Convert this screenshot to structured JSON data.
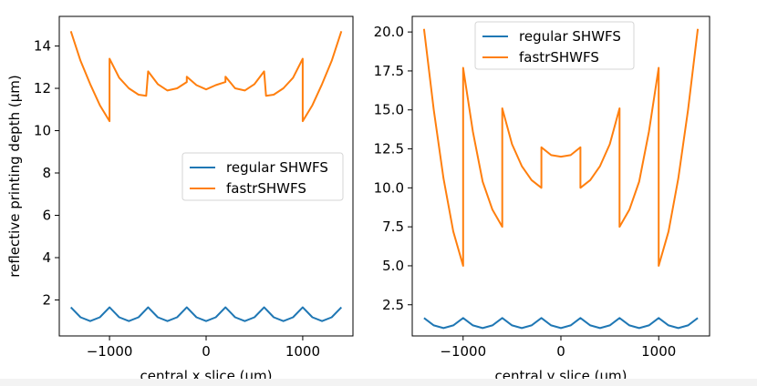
{
  "chart_data": [
    {
      "type": "line",
      "title": "",
      "xlabel": "central x slice (μm)",
      "ylabel": "reflective printing depth (μm)",
      "xlim": [
        -1520,
        1520
      ],
      "ylim": [
        0.3,
        15.4
      ],
      "xticks": [
        -1000,
        0,
        1000
      ],
      "xtick_labels": [
        "−1000",
        "0",
        "1000"
      ],
      "yticks": [
        2,
        4,
        6,
        8,
        10,
        12,
        14
      ],
      "ytick_labels": [
        "2",
        "4",
        "6",
        "8",
        "10",
        "12",
        "14"
      ],
      "legend_position": "center-right",
      "grid": false,
      "series": [
        {
          "name": "regular SHWFS",
          "color": "#1f77b4",
          "x": [
            -1400,
            -1300,
            -1200,
            -1100,
            -1000,
            -900,
            -800,
            -700,
            -600,
            -500,
            -400,
            -300,
            -200,
            -100,
            0,
            100,
            200,
            300,
            400,
            500,
            600,
            700,
            800,
            900,
            1000,
            1100,
            1200,
            1300,
            1400
          ],
          "y": [
            1.65,
            1.18,
            1.0,
            1.18,
            1.65,
            1.18,
            1.0,
            1.18,
            1.65,
            1.18,
            1.0,
            1.18,
            1.65,
            1.18,
            1.0,
            1.18,
            1.65,
            1.18,
            1.0,
            1.18,
            1.65,
            1.18,
            1.0,
            1.18,
            1.65,
            1.18,
            1.0,
            1.18,
            1.65
          ]
        },
        {
          "name": "fastrSHWFS",
          "color": "#ff7f0e",
          "x": [
            -1400,
            -1300,
            -1200,
            -1100,
            -1000,
            -1000,
            -900,
            -800,
            -700,
            -620,
            -600,
            -500,
            -400,
            -300,
            -200,
            -200,
            -100,
            0,
            100,
            200,
            200,
            300,
            400,
            500,
            600,
            620,
            700,
            800,
            900,
            1000,
            1000,
            1100,
            1200,
            1300,
            1400
          ],
          "y": [
            14.7,
            13.3,
            12.2,
            11.2,
            10.45,
            13.4,
            12.5,
            12.0,
            11.7,
            11.65,
            12.8,
            12.2,
            11.9,
            12.0,
            12.3,
            12.55,
            12.15,
            11.95,
            12.15,
            12.3,
            12.55,
            12.0,
            11.9,
            12.2,
            12.8,
            11.65,
            11.7,
            12.0,
            12.5,
            13.4,
            10.45,
            11.2,
            12.2,
            13.3,
            14.7
          ]
        }
      ]
    },
    {
      "type": "line",
      "title": "",
      "xlabel": "central y slice (μm)",
      "ylabel": "",
      "xlim": [
        -1520,
        1520
      ],
      "ylim": [
        0.5,
        21.0
      ],
      "xticks": [
        -1000,
        0,
        1000
      ],
      "xtick_labels": [
        "−1000",
        "0",
        "1000"
      ],
      "yticks": [
        2.5,
        5.0,
        7.5,
        10.0,
        12.5,
        15.0,
        17.5,
        20.0
      ],
      "ytick_labels": [
        "2.5",
        "5.0",
        "7.5",
        "10.0",
        "12.5",
        "15.0",
        "17.5",
        "20.0"
      ],
      "legend_position": "top-center",
      "grid": false,
      "series": [
        {
          "name": "regular SHWFS",
          "color": "#1f77b4",
          "x": [
            -1400,
            -1300,
            -1200,
            -1100,
            -1000,
            -900,
            -800,
            -700,
            -600,
            -500,
            -400,
            -300,
            -200,
            -100,
            0,
            100,
            200,
            300,
            400,
            500,
            600,
            700,
            800,
            900,
            1000,
            1100,
            1200,
            1300,
            1400
          ],
          "y": [
            1.65,
            1.18,
            1.0,
            1.18,
            1.65,
            1.18,
            1.0,
            1.18,
            1.65,
            1.18,
            1.0,
            1.18,
            1.65,
            1.18,
            1.0,
            1.18,
            1.65,
            1.18,
            1.0,
            1.18,
            1.65,
            1.18,
            1.0,
            1.18,
            1.65,
            1.18,
            1.0,
            1.18,
            1.65
          ]
        },
        {
          "name": "fastrSHWFS",
          "color": "#ff7f0e",
          "x": [
            -1400,
            -1300,
            -1200,
            -1100,
            -1000,
            -1000,
            -900,
            -800,
            -700,
            -600,
            -600,
            -500,
            -400,
            -300,
            -200,
            -200,
            -100,
            0,
            100,
            200,
            200,
            300,
            400,
            500,
            600,
            600,
            700,
            800,
            900,
            1000,
            1000,
            1100,
            1200,
            1300,
            1400
          ],
          "y": [
            20.2,
            15.0,
            10.6,
            7.2,
            5.0,
            17.7,
            13.6,
            10.4,
            8.6,
            7.5,
            15.1,
            12.8,
            11.4,
            10.5,
            10.0,
            12.6,
            12.1,
            12.0,
            12.1,
            12.6,
            10.0,
            10.5,
            11.4,
            12.8,
            15.1,
            7.5,
            8.6,
            10.4,
            13.6,
            17.7,
            5.0,
            7.2,
            10.6,
            15.0,
            20.2
          ]
        }
      ]
    }
  ]
}
